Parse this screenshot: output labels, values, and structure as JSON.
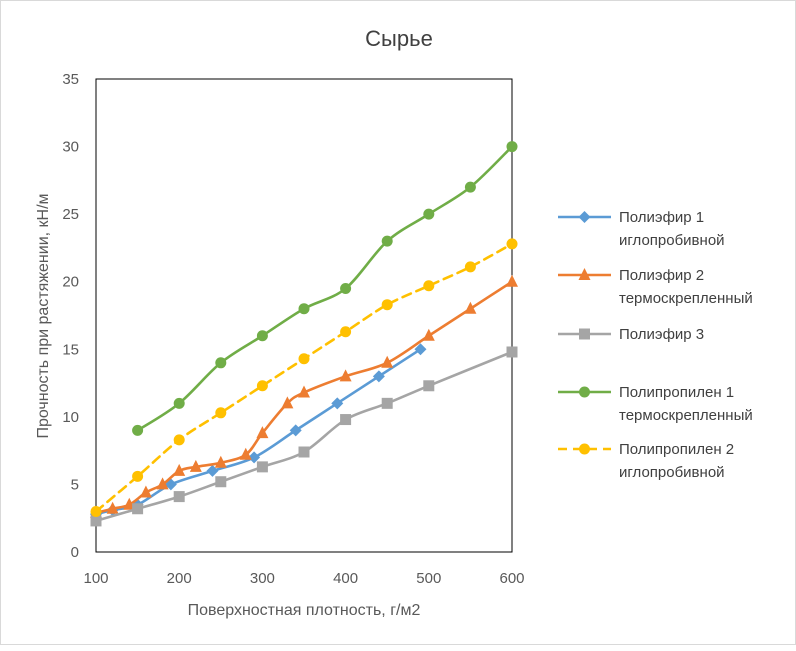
{
  "chart_data": {
    "type": "line",
    "title": "Сырье",
    "xlabel": "Поверхностная плотность, г/м2",
    "ylabel": "Прочность при растяжении, кН/м",
    "xlim": [
      100,
      600
    ],
    "ylim": [
      0,
      35
    ],
    "x_ticks": [
      "100",
      "200",
      "300",
      "400",
      "500",
      "600"
    ],
    "y_ticks": [
      "0",
      "5",
      "10",
      "15",
      "20",
      "25",
      "30",
      "35"
    ],
    "grid": false,
    "legend_position": "right",
    "series": [
      {
        "name_lines": [
          "Полиэфир 1",
          "иглопробивной"
        ],
        "color": "#5b9bd5",
        "marker": "diamond",
        "dashed": false,
        "points": [
          [
            100,
            2.8
          ],
          [
            120,
            3.1
          ],
          [
            150,
            3.5
          ],
          [
            190,
            5.0
          ],
          [
            240,
            6.0
          ],
          [
            290,
            7.0
          ],
          [
            340,
            9.0
          ],
          [
            390,
            11.0
          ],
          [
            440,
            13.0
          ],
          [
            490,
            15.0
          ]
        ]
      },
      {
        "name_lines": [
          "Полиэфир 2",
          "термоскрепленный"
        ],
        "color": "#ed7d31",
        "marker": "triangle",
        "dashed": false,
        "points": [
          [
            100,
            2.9
          ],
          [
            120,
            3.2
          ],
          [
            140,
            3.5
          ],
          [
            160,
            4.4
          ],
          [
            180,
            5.0
          ],
          [
            200,
            6.0
          ],
          [
            220,
            6.3
          ],
          [
            250,
            6.6
          ],
          [
            280,
            7.2
          ],
          [
            300,
            8.8
          ],
          [
            330,
            11.0
          ],
          [
            350,
            11.8
          ],
          [
            400,
            13.0
          ],
          [
            450,
            14.0
          ],
          [
            500,
            16.0
          ],
          [
            550,
            18.0
          ],
          [
            600,
            20.0
          ]
        ]
      },
      {
        "name_lines": [
          "Полиэфир 3"
        ],
        "color": "#a5a5a5",
        "marker": "square",
        "dashed": false,
        "points": [
          [
            100,
            2.3
          ],
          [
            150,
            3.2
          ],
          [
            200,
            4.1
          ],
          [
            250,
            5.2
          ],
          [
            300,
            6.3
          ],
          [
            350,
            7.4
          ],
          [
            400,
            9.8
          ],
          [
            450,
            11.0
          ],
          [
            500,
            12.3
          ],
          [
            600,
            14.8
          ]
        ]
      },
      {
        "name_lines": [
          "Полипропилен 1",
          "термоскрепленный"
        ],
        "color": "#70ad47",
        "marker": "circle",
        "dashed": false,
        "points": [
          [
            150,
            9.0
          ],
          [
            200,
            11.0
          ],
          [
            250,
            14.0
          ],
          [
            300,
            16.0
          ],
          [
            350,
            18.0
          ],
          [
            400,
            19.5
          ],
          [
            450,
            23.0
          ],
          [
            500,
            25.0
          ],
          [
            550,
            27.0
          ],
          [
            600,
            30.0
          ]
        ]
      },
      {
        "name_lines": [
          "Полипропилен 2",
          "иглопробивной"
        ],
        "color": "#ffc000",
        "marker": "circle",
        "dashed": true,
        "points": [
          [
            100,
            3.0
          ],
          [
            150,
            5.6
          ],
          [
            200,
            8.3
          ],
          [
            250,
            10.3
          ],
          [
            300,
            12.3
          ],
          [
            350,
            14.3
          ],
          [
            400,
            16.3
          ],
          [
            450,
            18.3
          ],
          [
            500,
            19.7
          ],
          [
            550,
            21.1
          ],
          [
            600,
            22.8
          ]
        ]
      }
    ]
  }
}
